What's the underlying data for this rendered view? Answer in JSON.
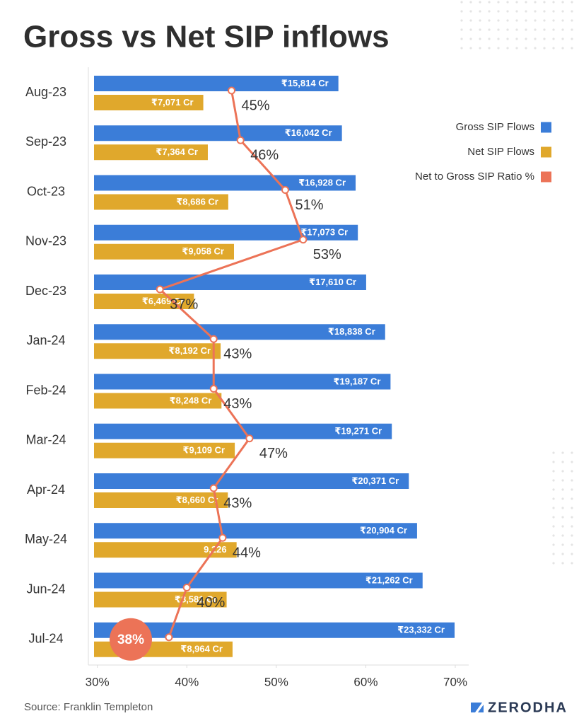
{
  "chart_data": {
    "type": "bar",
    "orientation": "horizontal",
    "title": "Gross vs Net SIP inflows",
    "categories": [
      "Aug-23",
      "Sep-23",
      "Oct-23",
      "Nov-23",
      "Dec-23",
      "Jan-24",
      "Feb-24",
      "Mar-24",
      "Apr-24",
      "May-24",
      "Jun-24",
      "Jul-24"
    ],
    "series": [
      {
        "name": "Gross SIP Flows",
        "color": "#3b7dd8",
        "values": [
          15814,
          16042,
          16928,
          17073,
          17610,
          18838,
          19187,
          19271,
          20371,
          20904,
          21262,
          23332
        ],
        "value_labels": [
          "₹15,814 Cr",
          "₹16,042 Cr",
          "₹16,928 Cr",
          "₹17,073 Cr",
          "₹17,610 Cr",
          "₹18,838 Cr",
          "₹19,187 Cr",
          "₹19,271 Cr",
          "₹20,371 Cr",
          "₹20,904 Cr",
          "₹21,262 Cr",
          "₹23,332 Cr"
        ]
      },
      {
        "name": "Net SIP Flows",
        "color": "#e0a82c",
        "values": [
          7071,
          7364,
          8686,
          9058,
          6469,
          8192,
          8248,
          9109,
          8660,
          9226,
          8581,
          8964
        ],
        "value_labels": [
          "₹7,071 Cr",
          "₹7,364 Cr",
          "₹8,686 Cr",
          "₹9,058 Cr",
          "₹6,469 Cr",
          "₹8,192 Cr",
          "₹8,248 Cr",
          "₹9,109 Cr",
          "₹8,660 Cr",
          "9,226",
          "₹8,581 Cr",
          "₹8,964 Cr"
        ]
      },
      {
        "name": "Net to Gross SIP Ratio %",
        "type": "line",
        "axis": "x",
        "color": "#ec7357",
        "values": [
          45,
          46,
          51,
          53,
          37,
          43,
          43,
          47,
          43,
          44,
          40,
          38
        ],
        "value_labels": [
          "45%",
          "46%",
          "51%",
          "53%",
          "37%",
          "43%",
          "43%",
          "47%",
          "43%",
          "44%",
          "40%",
          "38%"
        ]
      }
    ],
    "xlim": [
      29,
      71.5
    ],
    "xticks": [
      {
        "value": 30,
        "label": "30%"
      },
      {
        "value": 40,
        "label": "40%"
      },
      {
        "value": 50,
        "label": "50%"
      },
      {
        "value": 60,
        "label": "60%"
      },
      {
        "value": 70,
        "label": "70%"
      }
    ],
    "legend": "right"
  },
  "footer": {
    "source": "Source: Franklin Templeton",
    "brand": "ZERODHA"
  }
}
